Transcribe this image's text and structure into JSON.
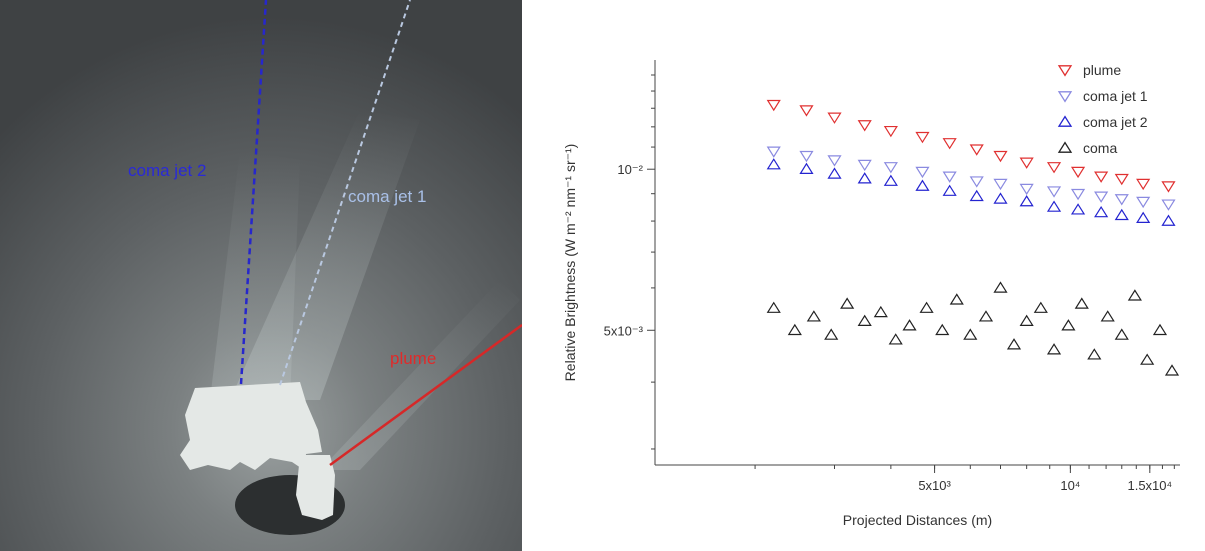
{
  "photo": {
    "labels": {
      "jet2": "coma jet 2",
      "jet1": "coma jet 1",
      "plume": "plume"
    }
  },
  "chart_data": {
    "type": "scatter",
    "xlabel": "Projected Distances (m)",
    "ylabel": "Relative Brightness (W m⁻² nm⁻¹ sr⁻¹)",
    "x_scale": "log",
    "y_scale": "log",
    "xlim": [
      1200,
      17500
    ],
    "ylim": [
      0.0028,
      0.016
    ],
    "x_ticks": [
      {
        "value": 5000,
        "label": "5x10³"
      },
      {
        "value": 10000,
        "label": "10⁴"
      },
      {
        "value": 15000,
        "label": "1.5x10⁴"
      }
    ],
    "y_ticks": [
      {
        "value": 0.01,
        "label": "10⁻²"
      },
      {
        "value": 0.005,
        "label": "5x10⁻³"
      }
    ],
    "grid": false,
    "legend_position": "top-right",
    "series": [
      {
        "name": "plume",
        "color": "#e03030",
        "marker": "triangle-down",
        "x": [
          2200,
          2600,
          3000,
          3500,
          4000,
          4700,
          5400,
          6200,
          7000,
          8000,
          9200,
          10400,
          11700,
          13000,
          14500,
          16500
        ],
        "y": [
          0.0132,
          0.0129,
          0.0125,
          0.0121,
          0.0118,
          0.0115,
          0.0112,
          0.0109,
          0.0106,
          0.0103,
          0.0101,
          0.0099,
          0.0097,
          0.0096,
          0.0094,
          0.0093
        ]
      },
      {
        "name": "coma jet 1",
        "color": "#8a8ae0",
        "marker": "triangle-down",
        "x": [
          2200,
          2600,
          3000,
          3500,
          4000,
          4700,
          5400,
          6200,
          7000,
          8000,
          9200,
          10400,
          11700,
          13000,
          14500,
          16500
        ],
        "y": [
          0.0108,
          0.0106,
          0.0104,
          0.0102,
          0.0101,
          0.0099,
          0.0097,
          0.0095,
          0.0094,
          0.0092,
          0.0091,
          0.009,
          0.0089,
          0.0088,
          0.0087,
          0.0086
        ]
      },
      {
        "name": "coma jet 2",
        "color": "#2424d0",
        "marker": "triangle-up",
        "x": [
          2200,
          2600,
          3000,
          3500,
          4000,
          4700,
          5400,
          6200,
          7000,
          8000,
          9200,
          10400,
          11700,
          13000,
          14500,
          16500
        ],
        "y": [
          0.0102,
          0.01,
          0.0098,
          0.0096,
          0.0095,
          0.0093,
          0.0091,
          0.0089,
          0.0088,
          0.0087,
          0.0085,
          0.0084,
          0.0083,
          0.0082,
          0.0081,
          0.008
        ]
      },
      {
        "name": "coma",
        "color": "#222222",
        "marker": "triangle-up",
        "x": [
          2200,
          2450,
          2700,
          2950,
          3200,
          3500,
          3800,
          4100,
          4400,
          4800,
          5200,
          5600,
          6000,
          6500,
          7000,
          7500,
          8000,
          8600,
          9200,
          9900,
          10600,
          11300,
          12100,
          13000,
          13900,
          14800,
          15800,
          16800
        ],
        "y": [
          0.0055,
          0.005,
          0.0053,
          0.0049,
          0.0056,
          0.0052,
          0.0054,
          0.0048,
          0.0051,
          0.0055,
          0.005,
          0.0057,
          0.0049,
          0.0053,
          0.006,
          0.0047,
          0.0052,
          0.0055,
          0.0046,
          0.0051,
          0.0056,
          0.0045,
          0.0053,
          0.0049,
          0.0058,
          0.0044,
          0.005,
          0.0042
        ]
      }
    ]
  }
}
